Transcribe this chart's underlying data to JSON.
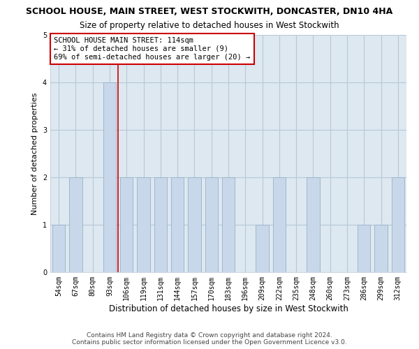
{
  "title": "SCHOOL HOUSE, MAIN STREET, WEST STOCKWITH, DONCASTER, DN10 4HA",
  "subtitle": "Size of property relative to detached houses in West Stockwith",
  "xlabel": "Distribution of detached houses by size in West Stockwith",
  "ylabel": "Number of detached properties",
  "categories": [
    "54sqm",
    "67sqm",
    "80sqm",
    "93sqm",
    "106sqm",
    "119sqm",
    "131sqm",
    "144sqm",
    "157sqm",
    "170sqm",
    "183sqm",
    "196sqm",
    "209sqm",
    "222sqm",
    "235sqm",
    "248sqm",
    "260sqm",
    "273sqm",
    "286sqm",
    "299sqm",
    "312sqm"
  ],
  "values": [
    1,
    2,
    0,
    4,
    2,
    2,
    2,
    2,
    2,
    2,
    2,
    0,
    1,
    2,
    0,
    2,
    0,
    0,
    1,
    1,
    2
  ],
  "bar_color": "#c8d8ea",
  "bar_edgecolor": "#9ab0c8",
  "bar_linewidth": 0.6,
  "vline_x": 4,
  "vline_color": "#cc0000",
  "vline_linewidth": 1.2,
  "ylim": [
    0,
    5
  ],
  "yticks": [
    0,
    1,
    2,
    3,
    4,
    5
  ],
  "annotation_box_text": "SCHOOL HOUSE MAIN STREET: 114sqm\n← 31% of detached houses are smaller (9)\n69% of semi-detached houses are larger (20) →",
  "footer_line1": "Contains HM Land Registry data © Crown copyright and database right 2024.",
  "footer_line2": "Contains public sector information licensed under the Open Government Licence v3.0.",
  "bg_color": "#ffffff",
  "axes_bg_color": "#dde8f0",
  "grid_color": "#b8c8d8",
  "title_fontsize": 9,
  "subtitle_fontsize": 8.5,
  "xlabel_fontsize": 8.5,
  "ylabel_fontsize": 8,
  "tick_fontsize": 7,
  "annot_fontsize": 7.5,
  "footer_fontsize": 6.5,
  "bar_width": 0.75
}
